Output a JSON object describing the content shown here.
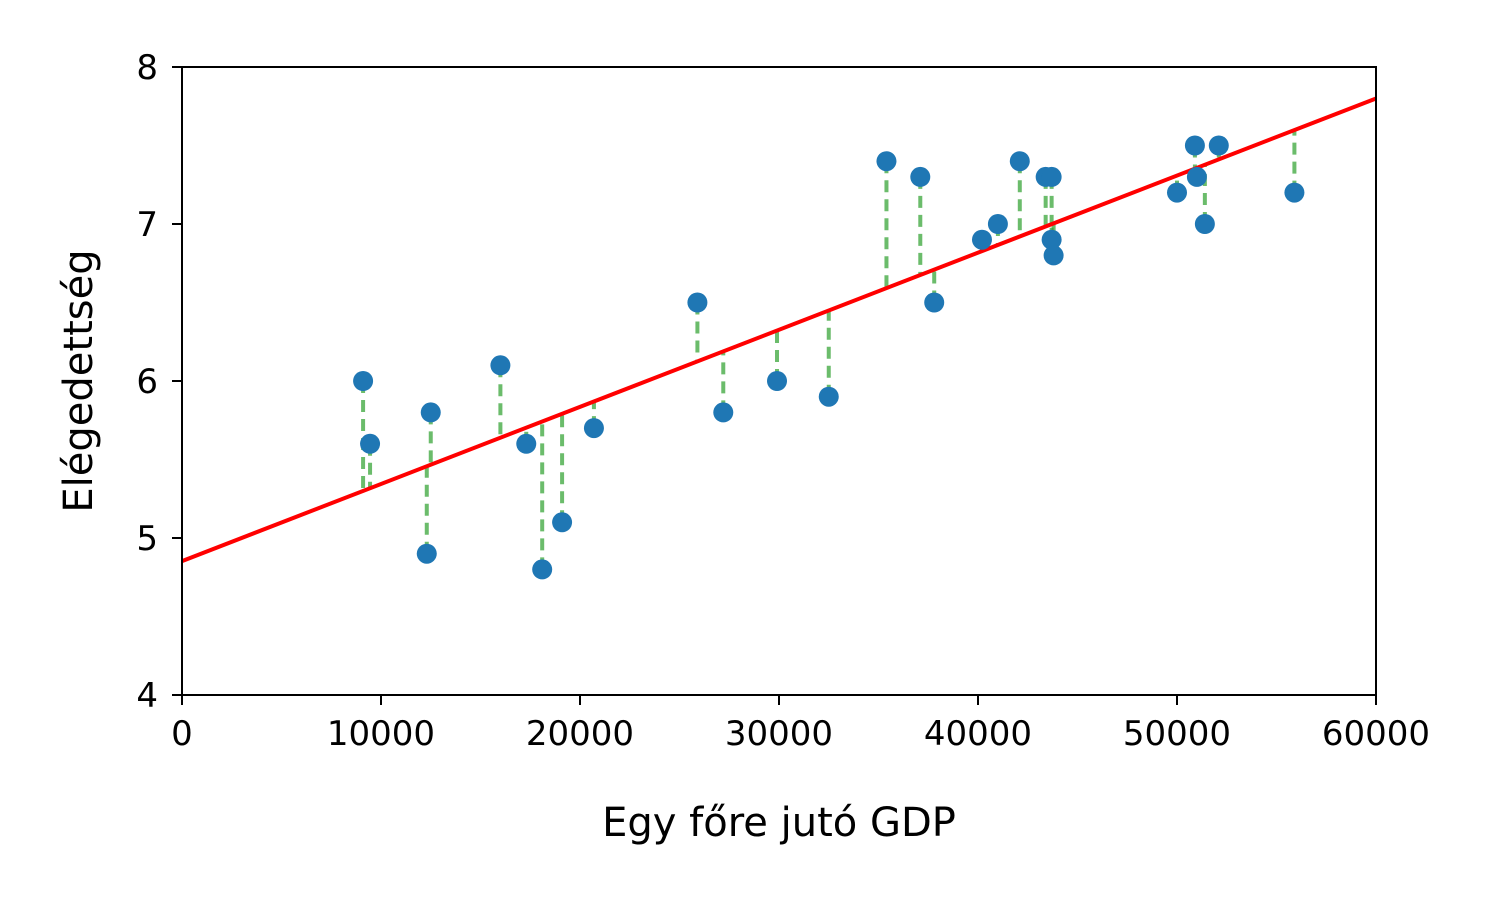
{
  "chart_data": {
    "type": "scatter",
    "title": "",
    "xlabel": "Egy főre jutó GDP",
    "ylabel": "Elégedettség",
    "xlim": [
      0,
      60000
    ],
    "ylim": [
      4,
      8
    ],
    "xticks": [
      0,
      10000,
      20000,
      30000,
      40000,
      50000,
      60000
    ],
    "yticks": [
      4,
      5,
      6,
      7,
      8
    ],
    "xtick_labels": [
      "0",
      "10000",
      "20000",
      "30000",
      "40000",
      "50000",
      "60000"
    ],
    "ytick_labels": [
      "4",
      "5",
      "6",
      "7",
      "8"
    ],
    "grid": false,
    "points": [
      {
        "x": 9100,
        "y": 6.0
      },
      {
        "x": 9450,
        "y": 5.6
      },
      {
        "x": 12300,
        "y": 4.9
      },
      {
        "x": 12500,
        "y": 5.8
      },
      {
        "x": 16000,
        "y": 6.1
      },
      {
        "x": 17300,
        "y": 5.6
      },
      {
        "x": 18100,
        "y": 4.8
      },
      {
        "x": 19100,
        "y": 5.1
      },
      {
        "x": 20700,
        "y": 5.7
      },
      {
        "x": 25900,
        "y": 6.5
      },
      {
        "x": 27200,
        "y": 5.8
      },
      {
        "x": 29900,
        "y": 6.0
      },
      {
        "x": 32500,
        "y": 5.9
      },
      {
        "x": 35400,
        "y": 7.4
      },
      {
        "x": 37100,
        "y": 7.3
      },
      {
        "x": 37800,
        "y": 6.5
      },
      {
        "x": 40200,
        "y": 6.9
      },
      {
        "x": 41000,
        "y": 7.0
      },
      {
        "x": 42100,
        "y": 7.4
      },
      {
        "x": 43400,
        "y": 7.3
      },
      {
        "x": 43700,
        "y": 7.3
      },
      {
        "x": 43700,
        "y": 6.9
      },
      {
        "x": 43800,
        "y": 6.8
      },
      {
        "x": 50000,
        "y": 7.2
      },
      {
        "x": 50900,
        "y": 7.5
      },
      {
        "x": 51000,
        "y": 7.3
      },
      {
        "x": 51400,
        "y": 7.0
      },
      {
        "x": 52100,
        "y": 7.5
      },
      {
        "x": 55900,
        "y": 7.2
      }
    ],
    "fit_line": {
      "intercept": 4.853,
      "slope": 4.911e-05
    },
    "colors": {
      "points": "#1f77b4",
      "fit_line": "#ff0000",
      "residuals": "#2ca02c"
    }
  }
}
